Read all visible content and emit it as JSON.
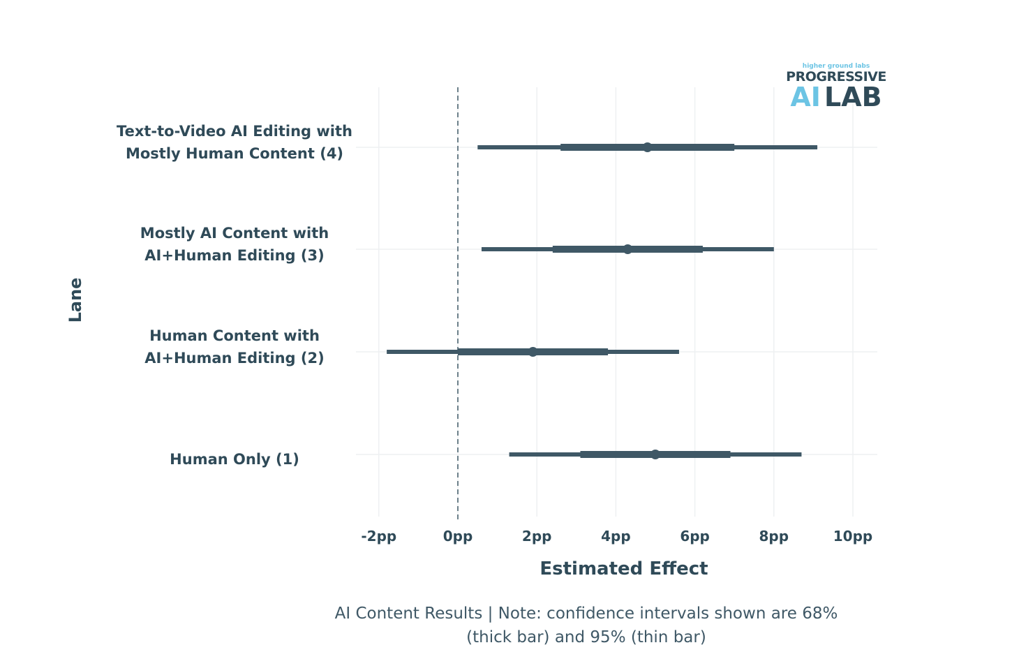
{
  "chart_data": {
    "type": "forest",
    "title": "",
    "xlabel": "Estimated Effect",
    "ylabel": "Lane",
    "xlim": [
      -2.6,
      10.8
    ],
    "xticks": [
      -2,
      0,
      2,
      4,
      6,
      8,
      10
    ],
    "xtick_labels": [
      "-2pp",
      "0pp",
      "2pp",
      "4pp",
      "6pp",
      "8pp",
      "10pp"
    ],
    "reference_line": 0,
    "grid": true,
    "series_color": "#3f5866",
    "rows": [
      {
        "label_lines": [
          "Text-to-Video AI Editing with",
          "Mostly Human Content (4)"
        ],
        "estimate": 4.8,
        "ci68": [
          2.6,
          7.0
        ],
        "ci95": [
          0.5,
          9.1
        ]
      },
      {
        "label_lines": [
          "Mostly AI Content with",
          "AI+Human Editing (3)"
        ],
        "estimate": 4.3,
        "ci68": [
          2.4,
          6.2
        ],
        "ci95": [
          0.6,
          8.0
        ]
      },
      {
        "label_lines": [
          "Human Content with",
          "AI+Human Editing (2)"
        ],
        "estimate": 1.9,
        "ci68": [
          0.0,
          3.8
        ],
        "ci95": [
          -1.8,
          5.6
        ]
      },
      {
        "label_lines": [
          "Human Only (1)"
        ],
        "estimate": 5.0,
        "ci68": [
          3.1,
          6.9
        ],
        "ci95": [
          1.3,
          8.7
        ]
      }
    ]
  },
  "caption": {
    "line1": "AI Content Results | Note: confidence intervals shown are  68%",
    "line2": "(thick bar)  and 95% (thin bar)"
  },
  "logo": {
    "top": "higher ground labs",
    "middle": "PROGRESSIVE",
    "ai": "AI",
    "lab": "LAB"
  }
}
